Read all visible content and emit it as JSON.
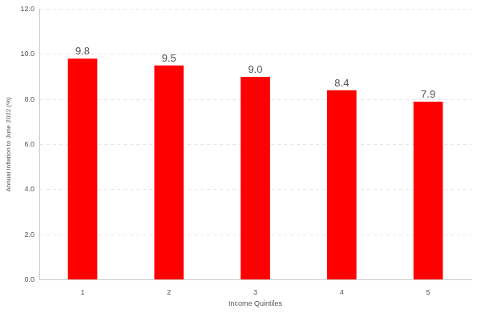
{
  "chart_data": {
    "type": "bar",
    "categories": [
      "1",
      "2",
      "3",
      "4",
      "5"
    ],
    "values": [
      9.8,
      9.5,
      9.0,
      8.4,
      7.9
    ],
    "value_labels": [
      "9.8",
      "9.5",
      "9.0",
      "8.4",
      "7.9"
    ],
    "color": "#ff0000",
    "x_label": "Income Quintiles",
    "y_label": "Annual Inflation to June 2022 (%)",
    "ylim": [
      0,
      12
    ],
    "yticks": [
      {
        "value": 0,
        "label": "0.0"
      },
      {
        "value": 2,
        "label": "2.0"
      },
      {
        "value": 4,
        "label": "4.0"
      },
      {
        "value": 6,
        "label": "6.0"
      },
      {
        "value": 8,
        "label": "8.0"
      },
      {
        "value": 10,
        "label": "10.0"
      },
      {
        "value": 12,
        "label": "12.0"
      }
    ],
    "grid": true,
    "data_labels": true
  }
}
